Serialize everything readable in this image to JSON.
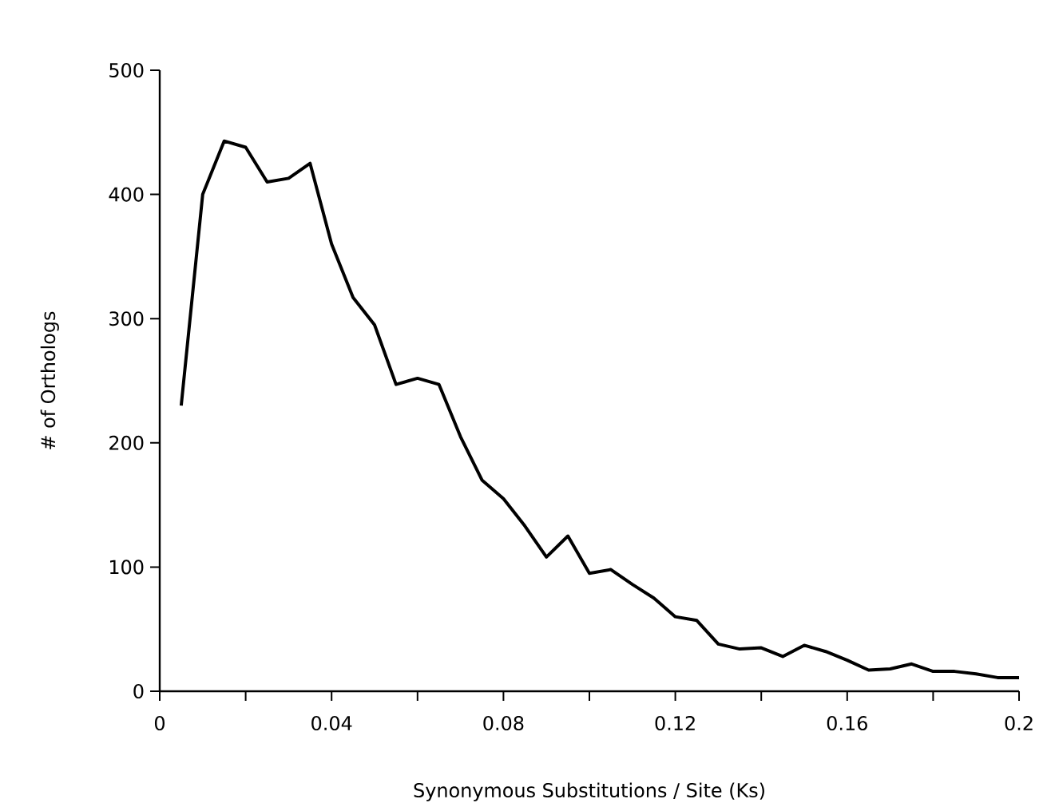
{
  "chart_data": {
    "type": "line",
    "xlabel": "Synonymous Substitutions / Site (Ks)",
    "ylabel": "# of Orthologs",
    "x": [
      0.005,
      0.01,
      0.015,
      0.02,
      0.025,
      0.03,
      0.035,
      0.04,
      0.045,
      0.05,
      0.055,
      0.06,
      0.065,
      0.07,
      0.075,
      0.08,
      0.085,
      0.09,
      0.095,
      0.1,
      0.105,
      0.11,
      0.115,
      0.12,
      0.125,
      0.13,
      0.135,
      0.14,
      0.145,
      0.15,
      0.155,
      0.16,
      0.165,
      0.17,
      0.175,
      0.18,
      0.185,
      0.19,
      0.195,
      0.2
    ],
    "values": [
      230,
      400,
      443,
      438,
      410,
      413,
      425,
      360,
      317,
      295,
      247,
      252,
      247,
      205,
      170,
      155,
      133,
      108,
      125,
      95,
      98,
      86,
      75,
      60,
      57,
      38,
      34,
      35,
      28,
      37,
      32,
      25,
      17,
      18,
      22,
      16,
      16,
      14,
      11,
      11
    ],
    "color": "#000000",
    "xlim": [
      0,
      0.2
    ],
    "ylim": [
      0,
      500
    ],
    "xticks": [
      0,
      {
        "value": 0.02,
        "label": null
      },
      0.04,
      {
        "value": 0.06,
        "label": null
      },
      0.08,
      {
        "value": 0.1,
        "label": null
      },
      0.12,
      {
        "value": 0.14,
        "label": null
      },
      0.16,
      {
        "value": 0.18,
        "label": null
      },
      0.2
    ],
    "yticks": [
      0,
      100,
      200,
      300,
      400,
      500
    ],
    "marker": "none",
    "line_style": "solid"
  }
}
